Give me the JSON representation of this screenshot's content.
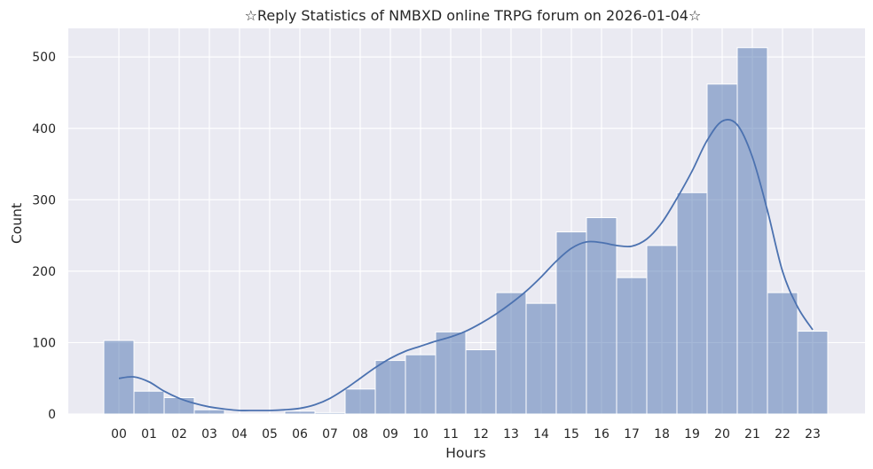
{
  "chart_data": {
    "type": "bar",
    "title": "☆Reply Statistics of NMBXD online TRPG forum on 2026-01-04☆",
    "xlabel": "Hours",
    "ylabel": "Count",
    "categories": [
      "00",
      "01",
      "02",
      "03",
      "04",
      "05",
      "06",
      "07",
      "08",
      "09",
      "10",
      "11",
      "12",
      "13",
      "14",
      "15",
      "16",
      "17",
      "18",
      "19",
      "20",
      "21",
      "22",
      "23"
    ],
    "values": [
      103,
      32,
      23,
      6,
      0,
      0,
      4,
      2,
      35,
      75,
      83,
      115,
      90,
      170,
      155,
      255,
      275,
      191,
      236,
      310,
      462,
      513,
      170,
      116
    ],
    "ylim": [
      0,
      540
    ],
    "yticks": [
      0,
      100,
      200,
      300,
      400,
      500
    ],
    "kde": {
      "x": [
        0,
        0.5,
        1,
        1.5,
        2,
        2.5,
        3,
        3.5,
        4,
        4.5,
        5,
        5.5,
        6,
        6.5,
        7,
        7.5,
        8,
        8.5,
        9,
        9.5,
        10,
        10.5,
        11,
        11.5,
        12,
        12.5,
        13,
        13.5,
        14,
        14.5,
        15,
        15.5,
        16,
        16.5,
        17,
        17.5,
        18,
        18.5,
        19,
        19.5,
        20,
        20.5,
        21,
        21.5,
        22,
        22.5,
        23
      ],
      "y": [
        50,
        52,
        45,
        32,
        22,
        15,
        10,
        7,
        5,
        5,
        5,
        6,
        8,
        13,
        22,
        35,
        50,
        65,
        78,
        88,
        95,
        102,
        108,
        116,
        127,
        140,
        155,
        172,
        192,
        214,
        232,
        241,
        240,
        236,
        235,
        245,
        268,
        302,
        340,
        383,
        410,
        405,
        360,
        285,
        200,
        150,
        118
      ]
    },
    "bar_color": "#4c72b0",
    "line_color": "#4c72b0",
    "background": "#eaeaf2",
    "grid": true,
    "legend": "none"
  }
}
